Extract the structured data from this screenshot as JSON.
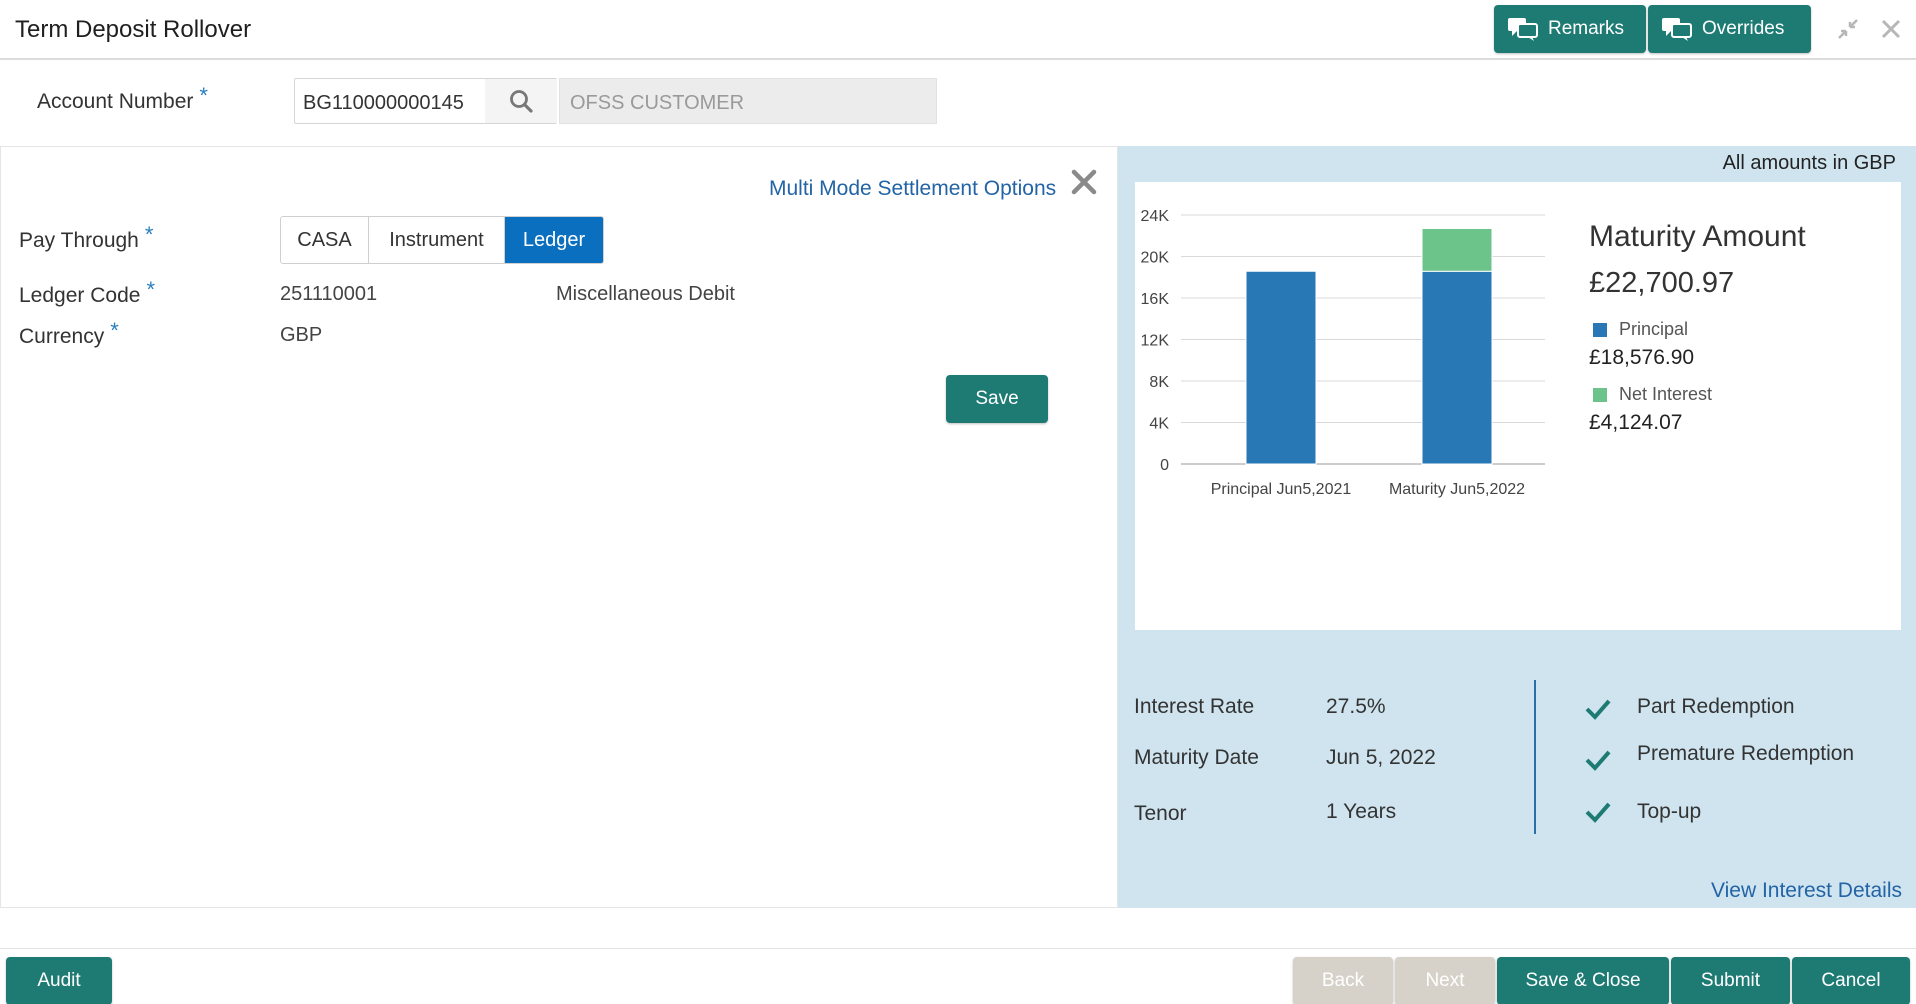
{
  "header": {
    "title": "Term Deposit Rollover",
    "remarks_label": "Remarks",
    "overrides_label": "Overrides"
  },
  "account": {
    "label": "Account Number",
    "required_mark": "*",
    "number": "BG110000000145",
    "customer_name_placeholder": "OFSS CUSTOMER"
  },
  "settlement": {
    "link": "Multi Mode Settlement Options",
    "pay_through_label": "Pay Through",
    "pay_through_options": [
      "CASA",
      "Instrument",
      "Ledger"
    ],
    "pay_through_selected": "Ledger",
    "ledger_code_label": "Ledger Code",
    "ledger_code": "251110001",
    "ledger_desc": "Miscellaneous Debit",
    "currency_label": "Currency",
    "currency": "GBP",
    "save_label": "Save"
  },
  "summary": {
    "amounts_note": "All amounts in GBP",
    "maturity_title": "Maturity Amount",
    "maturity_value": "£22,700.97",
    "principal_label": "Principal",
    "principal_value": "£18,576.90",
    "interest_label": "Net Interest",
    "interest_value": "£4,124.07",
    "interest_rate_label": "Interest Rate",
    "interest_rate": "27.5%",
    "maturity_date_label": "Maturity Date",
    "maturity_date": "Jun 5, 2022",
    "tenor_label": "Tenor",
    "tenor": "1 Years",
    "features": [
      "Part Redemption",
      "Premature Redemption",
      "Top-up"
    ],
    "view_link": "View Interest Details"
  },
  "colors": {
    "accent": "#1e7b74",
    "principal": "#2878b5",
    "interest": "#6cc48b",
    "selected": "#0b6fc0",
    "panel": "#cfe4ef"
  },
  "chart_data": {
    "type": "bar",
    "stacked": true,
    "categories": [
      "Principal Jun5,2021",
      "Maturity Jun5,2022"
    ],
    "series": [
      {
        "name": "Principal",
        "values": [
          18576.9,
          18576.9
        ]
      },
      {
        "name": "Net Interest",
        "values": [
          0,
          4124.07
        ]
      }
    ],
    "ylim": [
      0,
      24000
    ],
    "yticks": [
      "0",
      "4K",
      "8K",
      "12K",
      "16K",
      "20K",
      "24K"
    ],
    "grid": true
  },
  "footer": {
    "audit": "Audit",
    "back": "Back",
    "next": "Next",
    "save_close": "Save & Close",
    "submit": "Submit",
    "cancel": "Cancel"
  }
}
